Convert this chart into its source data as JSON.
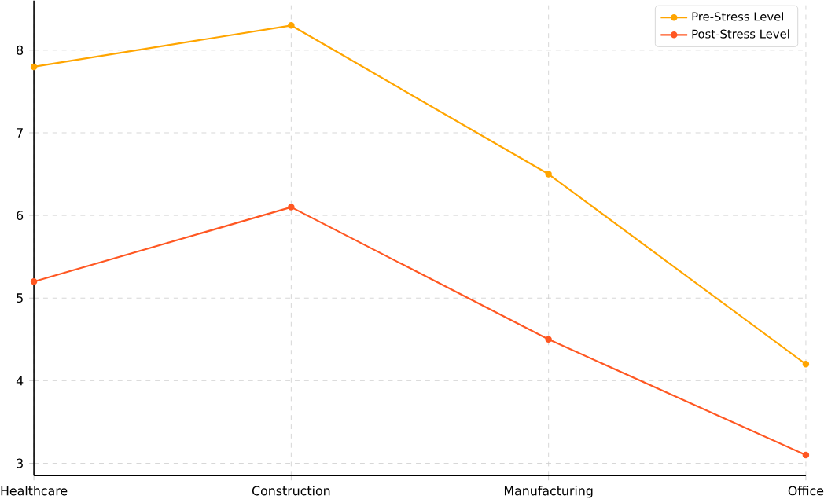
{
  "chart_data": {
    "type": "line",
    "categories": [
      "Healthcare",
      "Construction",
      "Manufacturing",
      "Office"
    ],
    "series": [
      {
        "name": "Pre-Stress Level",
        "color": "#ffa500",
        "values": [
          7.8,
          8.3,
          6.5,
          4.2
        ]
      },
      {
        "name": "Post-Stress Level",
        "color": "#ff5722",
        "values": [
          5.2,
          6.1,
          4.5,
          3.1
        ]
      }
    ],
    "ylim": [
      2.85,
      8.6
    ],
    "yticks": [
      3,
      4,
      5,
      6,
      7,
      8
    ],
    "grid": true,
    "legend": "top right",
    "marker": "circle",
    "line_style": "solid"
  }
}
